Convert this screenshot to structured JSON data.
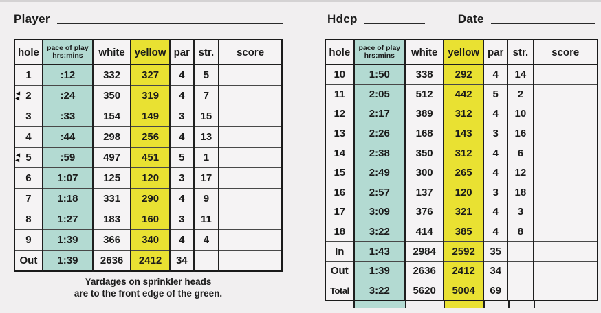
{
  "page": {
    "player_label": "Player",
    "hdcp_label": "Hdcp",
    "date_label": "Date",
    "note_line1": "Yardages on sprinkler heads",
    "note_line2": "are to the front edge of the green."
  },
  "columns": {
    "hole": "hole",
    "pace_line1": "pace of play",
    "pace_line2": "hrs:mins",
    "white": "white",
    "yellow": "yellow",
    "par": "par",
    "str": "str.",
    "score": "score"
  },
  "colors": {
    "pace_fill": "#b3dad2",
    "yellow_fill": "#e9e132",
    "paper": "#f1eff0",
    "line": "#1a1a1a"
  },
  "front_nine": {
    "rows": [
      {
        "hole": "1",
        "pace": ":12",
        "white": "332",
        "yellow": "327",
        "par": "4",
        "str": "5",
        "score": "",
        "markers": false
      },
      {
        "hole": "2",
        "pace": ":24",
        "white": "350",
        "yellow": "319",
        "par": "4",
        "str": "7",
        "score": "",
        "markers": true
      },
      {
        "hole": "3",
        "pace": ":33",
        "white": "154",
        "yellow": "149",
        "par": "3",
        "str": "15",
        "score": "",
        "markers": false
      },
      {
        "hole": "4",
        "pace": ":44",
        "white": "298",
        "yellow": "256",
        "par": "4",
        "str": "13",
        "score": "",
        "markers": false
      },
      {
        "hole": "5",
        "pace": ":59",
        "white": "497",
        "yellow": "451",
        "par": "5",
        "str": "1",
        "score": "",
        "markers": true
      },
      {
        "hole": "6",
        "pace": "1:07",
        "white": "125",
        "yellow": "120",
        "par": "3",
        "str": "17",
        "score": "",
        "markers": false
      },
      {
        "hole": "7",
        "pace": "1:18",
        "white": "331",
        "yellow": "290",
        "par": "4",
        "str": "9",
        "score": "",
        "markers": false
      },
      {
        "hole": "8",
        "pace": "1:27",
        "white": "183",
        "yellow": "160",
        "par": "3",
        "str": "11",
        "score": "",
        "markers": false
      },
      {
        "hole": "9",
        "pace": "1:39",
        "white": "366",
        "yellow": "340",
        "par": "4",
        "str": "4",
        "score": "",
        "markers": false
      },
      {
        "hole": "Out",
        "pace": "1:39",
        "white": "2636",
        "yellow": "2412",
        "par": "34",
        "str": "",
        "score": "",
        "markers": false
      }
    ]
  },
  "back_nine": {
    "rows": [
      {
        "hole": "10",
        "pace": "1:50",
        "white": "338",
        "yellow": "292",
        "par": "4",
        "str": "14",
        "score": "",
        "markers": false
      },
      {
        "hole": "11",
        "pace": "2:05",
        "white": "512",
        "yellow": "442",
        "par": "5",
        "str": "2",
        "score": "",
        "markers": false
      },
      {
        "hole": "12",
        "pace": "2:17",
        "white": "389",
        "yellow": "312",
        "par": "4",
        "str": "10",
        "score": "",
        "markers": false
      },
      {
        "hole": "13",
        "pace": "2:26",
        "white": "168",
        "yellow": "143",
        "par": "3",
        "str": "16",
        "score": "",
        "markers": false
      },
      {
        "hole": "14",
        "pace": "2:38",
        "white": "350",
        "yellow": "312",
        "par": "4",
        "str": "6",
        "score": "",
        "markers": false
      },
      {
        "hole": "15",
        "pace": "2:49",
        "white": "300",
        "yellow": "265",
        "par": "4",
        "str": "12",
        "score": "",
        "markers": false
      },
      {
        "hole": "16",
        "pace": "2:57",
        "white": "137",
        "yellow": "120",
        "par": "3",
        "str": "18",
        "score": "",
        "markers": false
      },
      {
        "hole": "17",
        "pace": "3:09",
        "white": "376",
        "yellow": "321",
        "par": "4",
        "str": "3",
        "score": "",
        "markers": false
      },
      {
        "hole": "18",
        "pace": "3:22",
        "white": "414",
        "yellow": "385",
        "par": "4",
        "str": "8",
        "score": "",
        "markers": false
      },
      {
        "hole": "In",
        "pace": "1:43",
        "white": "2984",
        "yellow": "2592",
        "par": "35",
        "str": "",
        "score": "",
        "markers": false
      },
      {
        "hole": "Out",
        "pace": "1:39",
        "white": "2636",
        "yellow": "2412",
        "par": "34",
        "str": "",
        "score": "",
        "markers": false
      },
      {
        "hole": "Total",
        "pace": "3:22",
        "white": "5620",
        "yellow": "5004",
        "par": "69",
        "str": "",
        "score": "",
        "markers": false
      }
    ]
  }
}
